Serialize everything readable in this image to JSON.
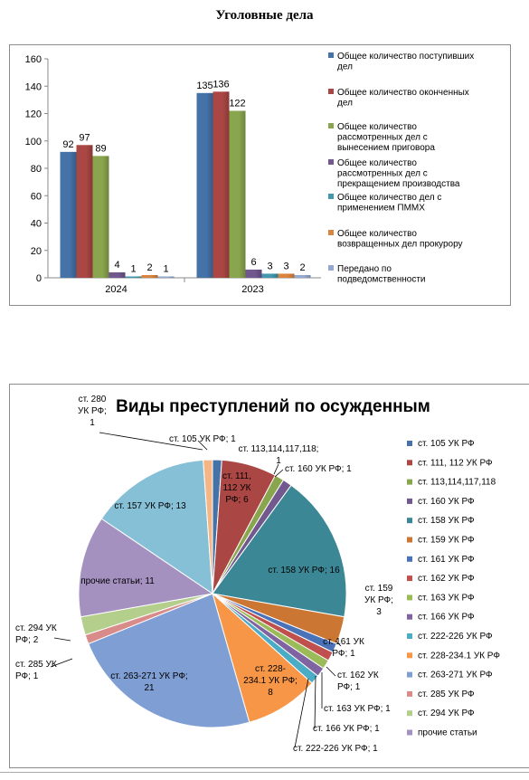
{
  "bar_title": "Уголовные дела",
  "chart_data": [
    {
      "type": "bar",
      "title": "Уголовные дела",
      "categories": [
        "2024",
        "2023"
      ],
      "ylim": [
        0,
        160
      ],
      "yticks": [
        0,
        20,
        40,
        60,
        80,
        100,
        120,
        140,
        160
      ],
      "grid": false,
      "legend": "right",
      "series": [
        {
          "name": "Общее количество поступивших дел",
          "color": "#4572a7",
          "values": [
            92,
            135
          ]
        },
        {
          "name": "Общее количество оконченных дел",
          "color": "#aa4643",
          "values": [
            97,
            136
          ]
        },
        {
          "name": "Общее количество рассмотренных дел с вынесением приговора",
          "color": "#89a54e",
          "values": [
            89,
            122
          ]
        },
        {
          "name": "Общее количество рассмотренных дел с прекращением производства",
          "color": "#71588f",
          "values": [
            4,
            6
          ]
        },
        {
          "name": "Общее количество дел с применением ПММХ",
          "color": "#4198af",
          "values": [
            1,
            3
          ]
        },
        {
          "name": "Общее количество возвращенных дел прокурору",
          "color": "#db843d",
          "values": [
            2,
            3
          ]
        },
        {
          "name": "Передано по подведомственности",
          "color": "#93a9cf",
          "values": [
            1,
            2
          ]
        }
      ],
      "legend_lines": [
        [
          "Общее количество поступивших",
          "дел"
        ],
        [
          "Общее количество оконченных",
          "дел"
        ],
        [
          "Общее количество",
          "рассмотренных дел с",
          "вынесением приговора"
        ],
        [
          "Общее количество",
          "рассмотренных дел с",
          "прекращением производства"
        ],
        [
          "Общее количество дел с",
          "применением ПММХ"
        ],
        [
          "Общее количество",
          "возвращенных дел прокурору"
        ],
        [
          "Передано по",
          "подведомственности"
        ]
      ]
    },
    {
      "type": "pie",
      "title": "Виды преступлений по осужденным",
      "legend": "right",
      "slices": [
        {
          "name": "ст. 105 УК РФ",
          "value": 1,
          "color": "#4572a7",
          "label": [
            "ст. 105 УК РФ; 1"
          ]
        },
        {
          "name": "ст. 111, 112 УК РФ",
          "value": 6,
          "color": "#aa4643",
          "label": [
            "ст. 111,",
            "112 УК",
            "РФ; 6"
          ]
        },
        {
          "name": "ст. 113,114,117,118",
          "value": 1,
          "color": "#89a54e",
          "label": [
            "ст. 113,114,117,118;",
            "1"
          ]
        },
        {
          "name": "ст. 160 УК РФ",
          "value": 1,
          "color": "#71588f",
          "label": [
            "ст. 160 УК РФ; 1"
          ]
        },
        {
          "name": "ст. 158 УК РФ",
          "value": 16,
          "color": "#3b8796",
          "label": [
            "ст. 158 УК РФ; 16"
          ]
        },
        {
          "name": "ст. 159 УК РФ",
          "value": 3,
          "color": "#cc7633",
          "label": [
            "ст. 159",
            "УК РФ;",
            "3"
          ]
        },
        {
          "name": "ст. 161 УК РФ",
          "value": 1,
          "color": "#4a72b8",
          "label": [
            "ст. 161 УК",
            "РФ; 1"
          ]
        },
        {
          "name": "ст. 162 УК РФ",
          "value": 1,
          "color": "#c0504d",
          "label": [
            "ст. 162 УК",
            "РФ; 1"
          ]
        },
        {
          "name": "ст. 163 УК РФ",
          "value": 1,
          "color": "#9bbb59",
          "label": [
            "ст. 163 УК РФ; 1"
          ]
        },
        {
          "name": "ст. 166 УК РФ",
          "value": 1,
          "color": "#8064a2",
          "label": [
            "ст. 166 УК РФ; 1"
          ]
        },
        {
          "name": "ст. 222-226 УК РФ",
          "value": 1,
          "color": "#4bacc6",
          "label": [
            "ст. 222-226 УК РФ; 1"
          ]
        },
        {
          "name": "ст. 228-234.1 УК РФ",
          "value": 8,
          "color": "#f79646",
          "label": [
            "ст. 228-",
            "234.1 УК РФ;",
            "8"
          ]
        },
        {
          "name": "ст. 263-271 УК РФ",
          "value": 21,
          "color": "#7f9fd4",
          "label": [
            "ст. 263-271 УК РФ;",
            "21"
          ]
        },
        {
          "name": "ст. 285 УК РФ",
          "value": 1,
          "color": "#d98b8a",
          "label": [
            "ст. 285 УК",
            "РФ; 1"
          ]
        },
        {
          "name": "ст. 294 УК РФ",
          "value": 2,
          "color": "#b3cf8b",
          "label": [
            "ст. 294 УК",
            "РФ; 2"
          ]
        },
        {
          "name": "прочие статьи",
          "value": 11,
          "color": "#a491c0",
          "label": [
            "прочие статьи; 11"
          ]
        },
        {
          "name": "ст. 157 УК РФ",
          "value": 13,
          "color": "#86c0d6",
          "label": [
            "ст. 157 УК РФ; 13"
          ]
        },
        {
          "name": "ст. 280 УК РФ",
          "value": 1,
          "color": "#f5b585",
          "label": [
            "ст. 280",
            "УК РФ;",
            "1"
          ]
        }
      ],
      "legend_items": [
        {
          "name": "ст. 105 УК РФ",
          "color": "#4572a7"
        },
        {
          "name": "ст. 111, 112 УК РФ",
          "color": "#aa4643"
        },
        {
          "name": "ст. 113,114,117,118",
          "color": "#89a54e"
        },
        {
          "name": "ст. 160 УК РФ",
          "color": "#71588f"
        },
        {
          "name": "ст. 158 УК РФ",
          "color": "#3b8796"
        },
        {
          "name": "ст. 159 УК РФ",
          "color": "#cc7633"
        },
        {
          "name": "ст. 161 УК РФ",
          "color": "#4a72b8"
        },
        {
          "name": "ст. 162 УК РФ",
          "color": "#c0504d"
        },
        {
          "name": "ст. 163 УК РФ",
          "color": "#9bbb59"
        },
        {
          "name": "ст. 166 УК РФ",
          "color": "#8064a2"
        },
        {
          "name": "ст. 222-226 УК РФ",
          "color": "#4bacc6"
        },
        {
          "name": "ст. 228-234.1 УК РФ",
          "color": "#f79646"
        },
        {
          "name": "ст. 263-271 УК РФ",
          "color": "#7f9fd4"
        },
        {
          "name": "ст. 285 УК РФ",
          "color": "#d98b8a"
        },
        {
          "name": "ст. 294 УК РФ",
          "color": "#b3cf8b"
        },
        {
          "name": "прочие статьи",
          "color": "#a491c0"
        }
      ]
    }
  ]
}
